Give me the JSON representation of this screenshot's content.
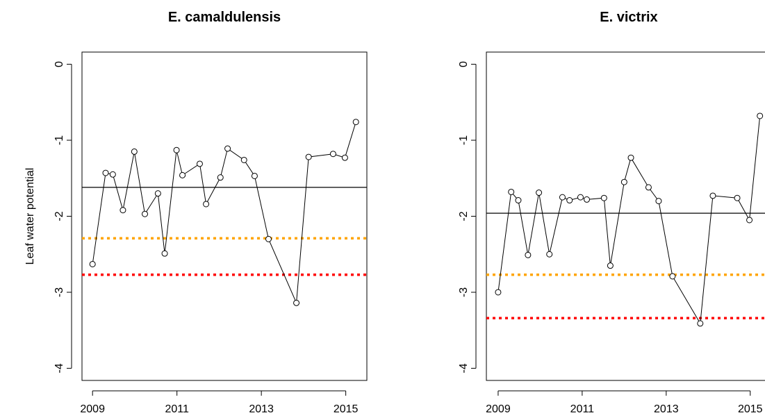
{
  "chart_data": [
    {
      "type": "line",
      "title": "E. camaldulensis",
      "y_label": "Leaf water potential",
      "x": [
        2009.0,
        2009.31,
        2009.48,
        2009.72,
        2009.99,
        2010.24,
        2010.55,
        2010.71,
        2010.99,
        2011.13,
        2011.54,
        2011.69,
        2012.03,
        2012.2,
        2012.59,
        2012.84,
        2013.17,
        2013.83,
        2014.12,
        2014.7,
        2014.98,
        2015.24
      ],
      "values": [
        -2.63,
        -1.43,
        -1.45,
        -1.92,
        -1.15,
        -1.97,
        -1.7,
        -2.49,
        -1.13,
        -1.46,
        -1.31,
        -1.84,
        -1.49,
        -1.11,
        -1.26,
        -1.47,
        -2.3,
        -3.14,
        -1.22,
        -1.18,
        -1.23,
        -0.76
      ],
      "color": "#000000",
      "hlines": [
        {
          "value": -1.62,
          "color": "#000000",
          "style": "solid"
        },
        {
          "value": -2.29,
          "color": "#ffa500",
          "style": "dotted"
        },
        {
          "value": -2.77,
          "color": "#ff0000",
          "style": "dotted"
        }
      ],
      "xlim": [
        2008.75,
        2015.5
      ],
      "xticks": [
        2009,
        2011,
        2013,
        2015
      ],
      "ylim": [
        -4.16,
        0.16
      ],
      "yticks": [
        -4,
        -3,
        -2,
        -1,
        0
      ]
    },
    {
      "type": "line",
      "title": "E. victrix",
      "x": [
        2009.0,
        2009.31,
        2009.48,
        2009.71,
        2009.97,
        2010.22,
        2010.53,
        2010.7,
        2010.96,
        2011.11,
        2011.52,
        2011.67,
        2012.0,
        2012.16,
        2012.58,
        2012.82,
        2013.15,
        2013.81,
        2014.11,
        2014.69,
        2014.98,
        2015.23
      ],
      "values": [
        -3.0,
        -1.68,
        -1.79,
        -2.51,
        -1.69,
        -2.5,
        -1.75,
        -1.79,
        -1.75,
        -1.78,
        -1.76,
        -2.65,
        -1.55,
        -1.23,
        -1.62,
        -1.8,
        -2.79,
        -3.41,
        -1.73,
        -1.76,
        -2.05,
        -0.68
      ],
      "color": "#000000",
      "hlines": [
        {
          "value": -1.96,
          "color": "#000000",
          "style": "solid"
        },
        {
          "value": -2.77,
          "color": "#ffa500",
          "style": "dotted"
        },
        {
          "value": -3.34,
          "color": "#ff0000",
          "style": "dotted"
        }
      ],
      "xlim": [
        2008.72,
        2015.5
      ],
      "xticks": [
        2009,
        2011,
        2013,
        2015
      ],
      "ylim": [
        -4.16,
        0.16
      ],
      "yticks": [
        -4,
        -3,
        -2,
        -1,
        0
      ]
    }
  ]
}
